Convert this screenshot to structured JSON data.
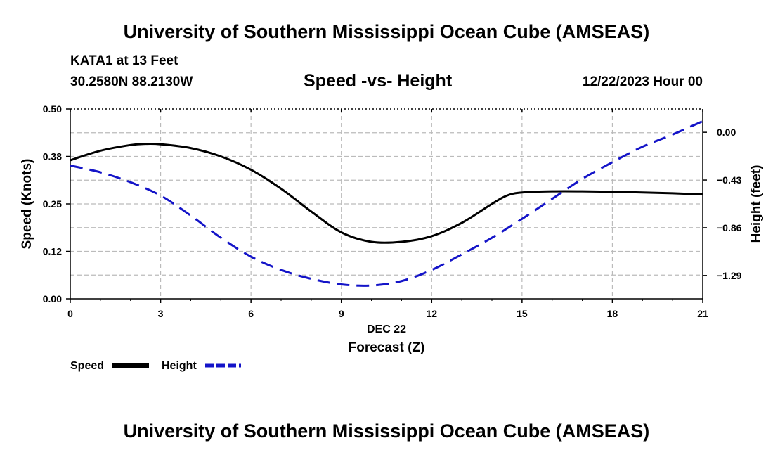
{
  "header": {
    "main_title": "University of Southern Mississippi Ocean Cube (AMSEAS)",
    "station": "KATA1 at 13 Feet",
    "coords": "30.2580N  88.2130W",
    "chart_title": "Speed -vs- Height",
    "date": "12/22/2023 Hour 00"
  },
  "footer": {
    "title": "University of Southern Mississippi Ocean Cube (AMSEAS)"
  },
  "chart_data": {
    "type": "line",
    "title": "Speed -vs- Height",
    "xlabel": "Forecast (Z)",
    "xsublabel": "DEC 22",
    "ylabel": "Speed (Knots)",
    "y2label": "Height (feet)",
    "xlim": [
      0,
      21
    ],
    "ylim": [
      0,
      0.5
    ],
    "y2lim": [
      -1.5,
      0.21
    ],
    "x_ticks": [
      0,
      3,
      6,
      9,
      12,
      15,
      18,
      21
    ],
    "x_tick_labels": [
      "0",
      "3",
      "6",
      "9",
      "12",
      "15",
      "18",
      "21"
    ],
    "y_ticks": [
      0,
      0.125,
      0.25,
      0.375,
      0.5
    ],
    "y_tick_labels": [
      "0.00",
      "0.12",
      "0.25",
      "0.38",
      "0.50"
    ],
    "y2_ticks": [
      0,
      -0.43,
      -0.86,
      -1.29
    ],
    "y2_tick_labels": [
      "0.00",
      "−0.43",
      "−0.86",
      "−1.29"
    ],
    "grid": true,
    "series": [
      {
        "name": "Speed",
        "axis": "left",
        "color": "#000000",
        "style": "solid",
        "x": [
          0,
          1,
          2,
          2.5,
          3,
          4,
          5,
          6,
          7,
          8,
          9,
          10,
          11,
          12,
          13,
          14,
          14.5,
          15,
          16,
          17,
          18,
          19,
          20,
          21
        ],
        "values": [
          0.365,
          0.39,
          0.405,
          0.408,
          0.407,
          0.397,
          0.375,
          0.34,
          0.29,
          0.23,
          0.175,
          0.15,
          0.15,
          0.165,
          0.2,
          0.25,
          0.272,
          0.28,
          0.283,
          0.283,
          0.282,
          0.28,
          0.278,
          0.275
        ]
      },
      {
        "name": "Height",
        "axis": "right",
        "color": "#1414c8",
        "style": "dashed",
        "x": [
          0,
          1,
          2,
          3,
          4,
          5,
          6,
          7,
          8,
          9,
          10,
          11,
          12,
          13,
          14,
          15,
          16,
          17,
          18,
          19,
          20,
          21
        ],
        "values": [
          -0.3,
          -0.36,
          -0.45,
          -0.57,
          -0.75,
          -0.95,
          -1.12,
          -1.24,
          -1.32,
          -1.37,
          -1.38,
          -1.34,
          -1.24,
          -1.1,
          -0.95,
          -0.78,
          -0.6,
          -0.42,
          -0.27,
          -0.13,
          -0.02,
          0.1
        ]
      }
    ]
  },
  "legend": {
    "speed_label": "Speed",
    "height_label": "Height"
  }
}
